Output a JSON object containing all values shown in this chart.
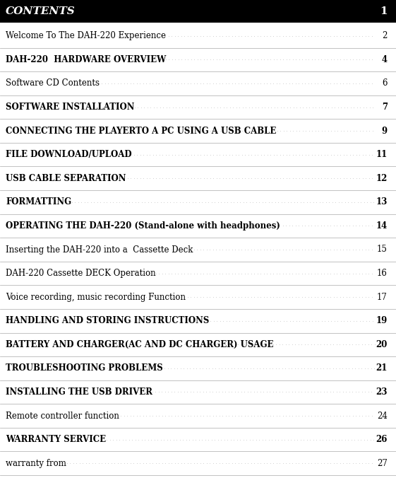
{
  "header_text": "CONTENTS",
  "header_page": "1",
  "header_bg": "#000000",
  "header_fg": "#ffffff",
  "entries": [
    {
      "text": "Welcome To The DAH-220 Experience",
      "page": "2",
      "bold": false
    },
    {
      "text": "DAH-220  HARDWARE OVERVIEW",
      "page": "4",
      "bold": true
    },
    {
      "text": "Software CD Contents",
      "page": "6",
      "bold": false
    },
    {
      "text": "SOFTWARE INSTALLATION",
      "page": "7",
      "bold": true
    },
    {
      "text": "CONNECTING THE PLAYERTO A PC USING A USB CABLE",
      "page": "9",
      "bold": true
    },
    {
      "text": "FILE DOWNLOAD/UPLOAD",
      "page": "11",
      "bold": true
    },
    {
      "text": "USB CABLE SEPARATION",
      "page": "12",
      "bold": true
    },
    {
      "text": "FORMATTING",
      "page": "13",
      "bold": true
    },
    {
      "text": "OPERATING THE DAH-220 (Stand-alone with headphones)",
      "page": "14",
      "bold": true
    },
    {
      "text": "Inserting the DAH-220 into a  Cassette Deck",
      "page": "15",
      "bold": false
    },
    {
      "text": "DAH-220 Cassette DECK Operation",
      "page": "16",
      "bold": false
    },
    {
      "text": "Voice recording, music recording Function",
      "page": "17",
      "bold": false
    },
    {
      "text": "HANDLING AND STORING INSTRUCTIONS",
      "page": "19",
      "bold": true
    },
    {
      "text": "BATTERY AND CHARGER(AC AND DC CHARGER) USAGE",
      "page": "20",
      "bold": true
    },
    {
      "text": "TROUBLESHOOTING PROBLEMS",
      "page": "21",
      "bold": true
    },
    {
      "text": "INSTALLING THE USB DRIVER",
      "page": "23",
      "bold": true
    },
    {
      "text": "Remote controller function",
      "page": "24",
      "bold": false
    },
    {
      "text": "WARRANTY SERVICE",
      "page": "26",
      "bold": true
    },
    {
      "text": "warranty from",
      "page": "27",
      "bold": false
    }
  ],
  "bg_color": "#ffffff",
  "text_color": "#000000",
  "dot_color": "#999999",
  "separator_color": "#aaaaaa",
  "header_fontsize": 11,
  "entry_fontsize": 8.5,
  "page_num_fontsize": 8.5,
  "fig_width": 5.61,
  "fig_height": 6.76,
  "dpi": 100
}
